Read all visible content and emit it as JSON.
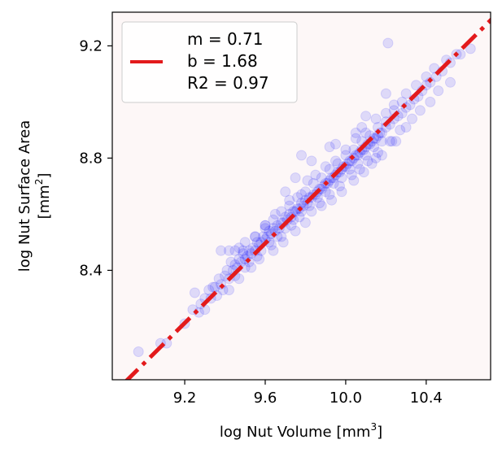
{
  "chart_data": {
    "type": "scatter",
    "title": "",
    "xlabel": "log Nut Volume [mm",
    "xlabel_sup": "3",
    "xlabel_end": "]",
    "ylabel_line1": "log Nut Surface Area",
    "ylabel_line2": "[mm",
    "ylabel_sup": "2",
    "ylabel_end": "]",
    "xlim": [
      8.84,
      10.72
    ],
    "ylim": [
      8.01,
      9.32
    ],
    "xticks": [
      9.2,
      9.6,
      10.0,
      10.4
    ],
    "xtick_labels": [
      "9.2",
      "9.6",
      "10.0",
      "10.4"
    ],
    "yticks": [
      8.4,
      8.8,
      9.2
    ],
    "ytick_labels": [
      "8.4",
      "8.8",
      "9.2"
    ],
    "grid": false,
    "plot_background": "#fdf7f7",
    "scatter_color": "#0000ff",
    "scatter_alpha": 0.12,
    "fit": {
      "m": 0.71,
      "b": 1.68,
      "color": "#e31a1c",
      "linestyle": "dash-dot"
    },
    "legend": {
      "placement": "top-left",
      "lines": [
        "m = 0.71",
        "b = 1.68",
        "R2 = 0.97"
      ]
    },
    "points": [
      [
        8.97,
        8.11
      ],
      [
        9.08,
        8.14
      ],
      [
        9.11,
        8.14
      ],
      [
        9.2,
        8.21
      ],
      [
        9.24,
        8.26
      ],
      [
        9.27,
        8.25
      ],
      [
        9.3,
        8.3
      ],
      [
        9.32,
        8.33
      ],
      [
        9.34,
        8.34
      ],
      [
        9.35,
        8.34
      ],
      [
        9.37,
        8.37
      ],
      [
        9.38,
        8.35
      ],
      [
        9.4,
        8.38
      ],
      [
        9.41,
        8.4
      ],
      [
        9.42,
        8.37
      ],
      [
        9.43,
        8.43
      ],
      [
        9.44,
        8.4
      ],
      [
        9.45,
        8.42
      ],
      [
        9.46,
        8.41
      ],
      [
        9.47,
        8.44
      ],
      [
        9.48,
        8.43
      ],
      [
        9.49,
        8.46
      ],
      [
        9.5,
        8.44
      ],
      [
        9.51,
        8.45
      ],
      [
        9.52,
        8.47
      ],
      [
        9.53,
        8.46
      ],
      [
        9.54,
        8.48
      ],
      [
        9.55,
        8.47
      ],
      [
        9.56,
        8.5
      ],
      [
        9.57,
        8.49
      ],
      [
        9.58,
        8.5
      ],
      [
        9.59,
        8.52
      ],
      [
        9.6,
        8.51
      ],
      [
        9.61,
        8.52
      ],
      [
        9.62,
        8.54
      ],
      [
        9.63,
        8.53
      ],
      [
        9.64,
        8.55
      ],
      [
        9.65,
        8.54
      ],
      [
        9.66,
        8.56
      ],
      [
        9.67,
        8.55
      ],
      [
        9.68,
        8.57
      ],
      [
        9.69,
        8.57
      ],
      [
        9.7,
        8.59
      ],
      [
        9.71,
        8.58
      ],
      [
        9.72,
        8.6
      ],
      [
        9.73,
        8.59
      ],
      [
        9.74,
        8.61
      ],
      [
        9.75,
        8.61
      ],
      [
        9.76,
        8.62
      ],
      [
        9.77,
        8.62
      ],
      [
        9.78,
        8.64
      ],
      [
        9.79,
        8.63
      ],
      [
        9.8,
        8.65
      ],
      [
        9.81,
        8.64
      ],
      [
        9.82,
        8.66
      ],
      [
        9.83,
        8.66
      ],
      [
        9.84,
        8.67
      ],
      [
        9.85,
        8.67
      ],
      [
        9.86,
        8.68
      ],
      [
        9.87,
        8.69
      ],
      [
        9.88,
        8.69
      ],
      [
        9.89,
        8.7
      ],
      [
        9.9,
        8.71
      ],
      [
        9.91,
        8.71
      ],
      [
        9.92,
        8.72
      ],
      [
        9.93,
        8.73
      ],
      [
        9.94,
        8.73
      ],
      [
        9.95,
        8.74
      ],
      [
        9.96,
        8.75
      ],
      [
        9.97,
        8.75
      ],
      [
        9.98,
        8.76
      ],
      [
        9.99,
        8.77
      ],
      [
        10.0,
        8.77
      ],
      [
        10.01,
        8.78
      ],
      [
        10.02,
        8.79
      ],
      [
        10.03,
        8.79
      ],
      [
        10.04,
        8.8
      ],
      [
        10.05,
        8.81
      ],
      [
        10.06,
        8.81
      ],
      [
        10.07,
        8.82
      ],
      [
        10.08,
        8.83
      ],
      [
        10.09,
        8.83
      ],
      [
        10.1,
        8.84
      ],
      [
        10.11,
        8.85
      ],
      [
        10.12,
        8.85
      ],
      [
        10.13,
        8.86
      ],
      [
        10.14,
        8.87
      ],
      [
        10.15,
        8.87
      ],
      [
        10.16,
        8.88
      ],
      [
        10.17,
        8.89
      ],
      [
        10.18,
        8.89
      ],
      [
        10.2,
        8.91
      ],
      [
        10.22,
        8.92
      ],
      [
        10.24,
        8.94
      ],
      [
        10.26,
        8.95
      ],
      [
        10.28,
        8.96
      ],
      [
        10.3,
        8.98
      ],
      [
        10.32,
        8.99
      ],
      [
        10.34,
        9.01
      ],
      [
        10.36,
        9.02
      ],
      [
        10.38,
        9.04
      ],
      [
        10.4,
        9.06
      ],
      [
        10.42,
        9.07
      ],
      [
        10.45,
        9.09
      ],
      [
        10.48,
        9.11
      ],
      [
        10.52,
        9.14
      ],
      [
        10.57,
        9.17
      ],
      [
        10.62,
        9.19
      ],
      [
        9.49,
        8.47
      ],
      [
        9.52,
        8.43
      ],
      [
        9.58,
        8.47
      ],
      [
        9.62,
        8.5
      ],
      [
        9.66,
        8.52
      ],
      [
        9.7,
        8.55
      ],
      [
        9.74,
        8.58
      ],
      [
        9.78,
        8.61
      ],
      [
        9.82,
        8.63
      ],
      [
        9.86,
        8.66
      ],
      [
        9.9,
        8.68
      ],
      [
        9.94,
        8.71
      ],
      [
        9.98,
        8.73
      ],
      [
        10.02,
        8.76
      ],
      [
        10.06,
        8.78
      ],
      [
        10.1,
        8.81
      ],
      [
        10.14,
        8.84
      ],
      [
        10.18,
        8.86
      ],
      [
        9.6,
        8.56
      ],
      [
        9.64,
        8.58
      ],
      [
        9.68,
        8.61
      ],
      [
        9.72,
        8.63
      ],
      [
        9.76,
        8.66
      ],
      [
        9.8,
        8.68
      ],
      [
        9.84,
        8.71
      ],
      [
        9.88,
        8.73
      ],
      [
        9.92,
        8.76
      ],
      [
        9.96,
        8.78
      ],
      [
        10.0,
        8.81
      ],
      [
        10.04,
        8.83
      ],
      [
        10.08,
        8.86
      ],
      [
        10.12,
        8.88
      ],
      [
        10.16,
        8.91
      ],
      [
        10.2,
        8.93
      ],
      [
        10.24,
        8.97
      ],
      [
        10.28,
        9.0
      ],
      [
        9.42,
        8.47
      ],
      [
        9.45,
        8.47
      ],
      [
        9.55,
        8.52
      ],
      [
        9.6,
        8.55
      ],
      [
        9.65,
        8.6
      ],
      [
        9.72,
        8.65
      ],
      [
        9.78,
        8.67
      ],
      [
        9.81,
        8.72
      ],
      [
        9.85,
        8.74
      ],
      [
        9.9,
        8.77
      ],
      [
        9.95,
        8.79
      ],
      [
        10.0,
        8.83
      ],
      [
        10.05,
        8.87
      ],
      [
        10.1,
        8.89
      ],
      [
        10.15,
        8.94
      ],
      [
        10.2,
        8.96
      ],
      [
        10.24,
        8.99
      ],
      [
        10.3,
        9.03
      ],
      [
        10.35,
        9.06
      ],
      [
        10.4,
        9.09
      ],
      [
        10.44,
        9.12
      ],
      [
        10.5,
        9.15
      ],
      [
        10.55,
        9.17
      ],
      [
        9.45,
        8.38
      ],
      [
        9.5,
        8.41
      ],
      [
        9.56,
        8.45
      ],
      [
        9.63,
        8.49
      ],
      [
        9.68,
        8.52
      ],
      [
        9.73,
        8.56
      ],
      [
        9.77,
        8.59
      ],
      [
        9.83,
        8.61
      ],
      [
        9.87,
        8.64
      ],
      [
        9.92,
        8.67
      ],
      [
        9.97,
        8.7
      ],
      [
        10.03,
        8.74
      ],
      [
        10.07,
        8.76
      ],
      [
        10.11,
        8.79
      ],
      [
        10.16,
        8.82
      ],
      [
        10.22,
        8.86
      ],
      [
        10.27,
        8.9
      ],
      [
        10.33,
        8.94
      ],
      [
        10.37,
        8.97
      ],
      [
        10.42,
        9.0
      ],
      [
        10.46,
        9.04
      ],
      [
        10.52,
        9.07
      ],
      [
        9.78,
        8.81
      ],
      [
        9.83,
        8.79
      ],
      [
        9.92,
        8.84
      ],
      [
        9.95,
        8.85
      ],
      [
        10.05,
        8.89
      ],
      [
        10.08,
        8.91
      ],
      [
        10.1,
        8.95
      ],
      [
        10.2,
        9.03
      ],
      [
        10.21,
        9.21
      ],
      [
        9.38,
        8.47
      ],
      [
        9.47,
        8.48
      ],
      [
        9.6,
        8.56
      ],
      [
        9.55,
        8.52
      ],
      [
        9.5,
        8.5
      ],
      [
        9.7,
        8.68
      ],
      [
        9.75,
        8.73
      ],
      [
        10.15,
        8.8
      ],
      [
        10.25,
        8.86
      ],
      [
        9.25,
        8.32
      ],
      [
        9.28,
        8.28
      ],
      [
        9.3,
        8.26
      ],
      [
        9.33,
        8.3
      ],
      [
        9.36,
        8.31
      ],
      [
        9.39,
        8.33
      ],
      [
        9.42,
        8.33
      ],
      [
        9.47,
        8.37
      ],
      [
        9.53,
        8.41
      ],
      [
        9.57,
        8.44
      ],
      [
        9.64,
        8.47
      ],
      [
        9.69,
        8.5
      ],
      [
        9.75,
        8.54
      ],
      [
        9.8,
        8.57
      ],
      [
        9.88,
        8.63
      ],
      [
        9.93,
        8.65
      ],
      [
        9.98,
        8.68
      ],
      [
        10.04,
        8.72
      ],
      [
        10.09,
        8.75
      ],
      [
        10.13,
        8.78
      ],
      [
        10.18,
        8.81
      ],
      [
        10.23,
        8.86
      ],
      [
        10.3,
        8.91
      ]
    ]
  }
}
